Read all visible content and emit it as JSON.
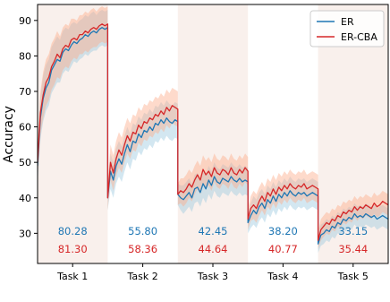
{
  "chart_data": {
    "type": "line",
    "title": "",
    "xlabel": "",
    "ylabel": "Accuracy",
    "ylim": [
      21.5,
      94.5
    ],
    "yticks": [
      30,
      40,
      50,
      60,
      70,
      80,
      90
    ],
    "grid": false,
    "legend_position": "top-right",
    "tasks": [
      {
        "label": "Task 1",
        "shaded": true
      },
      {
        "label": "Task 2",
        "shaded": false
      },
      {
        "label": "Task 3",
        "shaded": true
      },
      {
        "label": "Task 4",
        "shaded": false
      },
      {
        "label": "Task 5",
        "shaded": true
      }
    ],
    "annotations": {
      "ER": [
        "80.28",
        "55.80",
        "42.45",
        "38.20",
        "33.15"
      ],
      "ER-CBA": [
        "81.30",
        "58.36",
        "44.64",
        "40.77",
        "35.44"
      ]
    },
    "series": [
      {
        "name": "ER",
        "color": "#1f77b4",
        "band_color": "#9ecae1",
        "x": [
          0.0,
          0.04,
          0.08,
          0.12,
          0.16,
          0.2,
          0.24,
          0.28,
          0.32,
          0.36,
          0.4,
          0.44,
          0.48,
          0.52,
          0.56,
          0.6,
          0.64,
          0.68,
          0.72,
          0.76,
          0.8,
          0.84,
          0.88,
          0.92,
          0.96,
          1.0,
          1.0,
          1.04,
          1.08,
          1.12,
          1.16,
          1.2,
          1.24,
          1.28,
          1.32,
          1.36,
          1.4,
          1.44,
          1.48,
          1.52,
          1.56,
          1.6,
          1.64,
          1.68,
          1.72,
          1.76,
          1.8,
          1.84,
          1.88,
          1.92,
          1.96,
          2.0,
          2.0,
          2.04,
          2.08,
          2.12,
          2.16,
          2.2,
          2.24,
          2.28,
          2.32,
          2.36,
          2.4,
          2.44,
          2.48,
          2.52,
          2.56,
          2.6,
          2.64,
          2.68,
          2.72,
          2.76,
          2.8,
          2.84,
          2.88,
          2.92,
          2.96,
          3.0,
          3.0,
          3.04,
          3.08,
          3.12,
          3.16,
          3.2,
          3.24,
          3.28,
          3.32,
          3.36,
          3.4,
          3.44,
          3.48,
          3.52,
          3.56,
          3.6,
          3.64,
          3.68,
          3.72,
          3.76,
          3.8,
          3.84,
          3.88,
          3.92,
          3.96,
          4.0,
          4.0,
          4.04,
          4.08,
          4.12,
          4.16,
          4.2,
          4.24,
          4.28,
          4.32,
          4.36,
          4.4,
          4.44,
          4.48,
          4.52,
          4.56,
          4.6,
          4.64,
          4.68,
          4.72,
          4.76,
          4.8,
          4.84,
          4.88,
          4.92,
          4.96,
          5.0
        ],
        "values": [
          49.0,
          62.5,
          68.0,
          71.0,
          72.5,
          76.0,
          77.5,
          79.0,
          78.5,
          81.0,
          82.0,
          81.5,
          83.0,
          84.0,
          83.5,
          84.5,
          85.0,
          86.0,
          85.5,
          86.5,
          87.0,
          86.5,
          87.5,
          88.0,
          87.5,
          88.0,
          40.0,
          47.5,
          45.0,
          49.0,
          51.0,
          49.5,
          52.5,
          55.0,
          53.0,
          56.0,
          55.5,
          58.0,
          57.0,
          59.0,
          58.5,
          60.0,
          59.0,
          61.0,
          60.5,
          62.0,
          61.0,
          62.5,
          61.5,
          61.0,
          62.0,
          61.5,
          41.0,
          40.0,
          39.5,
          40.5,
          41.5,
          40.0,
          42.5,
          43.0,
          41.5,
          44.0,
          42.5,
          45.0,
          43.5,
          46.0,
          44.5,
          44.0,
          45.5,
          45.0,
          44.5,
          46.0,
          45.0,
          44.5,
          45.5,
          44.5,
          45.0,
          44.5,
          33.0,
          35.0,
          36.5,
          35.5,
          37.5,
          38.5,
          37.0,
          39.5,
          38.5,
          40.5,
          39.0,
          41.0,
          40.0,
          41.5,
          40.5,
          42.0,
          41.0,
          40.5,
          41.5,
          41.0,
          41.5,
          40.5,
          41.0,
          41.5,
          41.0,
          40.5,
          27.0,
          29.5,
          30.0,
          31.0,
          30.5,
          32.0,
          31.5,
          33.0,
          32.5,
          34.0,
          33.5,
          34.5,
          34.0,
          35.5,
          34.5,
          35.0,
          34.5,
          35.5,
          35.0,
          34.5,
          35.0,
          34.0,
          34.5,
          35.0,
          34.5,
          34.0
        ],
        "lower": [
          44.0,
          56.5,
          61.5,
          64.5,
          66.0,
          69.5,
          71.0,
          72.5,
          72.5,
          75.0,
          76.0,
          75.5,
          77.0,
          78.5,
          78.0,
          79.0,
          79.5,
          80.5,
          80.0,
          81.0,
          81.5,
          81.5,
          82.5,
          83.0,
          82.5,
          83.0,
          36.5,
          42.5,
          40.0,
          44.0,
          46.0,
          44.5,
          47.5,
          50.0,
          48.0,
          51.0,
          50.5,
          53.0,
          52.0,
          54.0,
          53.5,
          55.0,
          54.0,
          56.0,
          55.5,
          57.0,
          56.0,
          57.5,
          56.5,
          56.0,
          57.0,
          56.5,
          38.0,
          36.5,
          35.5,
          36.5,
          37.5,
          36.0,
          38.5,
          39.0,
          37.5,
          40.0,
          38.5,
          41.0,
          39.5,
          42.0,
          40.5,
          40.0,
          41.5,
          41.0,
          40.5,
          42.0,
          41.0,
          40.5,
          41.5,
          40.5,
          41.0,
          40.5,
          30.0,
          31.5,
          32.5,
          31.5,
          33.5,
          34.5,
          33.0,
          35.5,
          34.5,
          36.5,
          35.0,
          37.0,
          36.0,
          37.5,
          36.5,
          38.0,
          37.0,
          36.5,
          37.5,
          37.0,
          37.5,
          36.5,
          37.0,
          37.5,
          37.0,
          36.5,
          24.5,
          26.5,
          27.0,
          28.0,
          27.5,
          29.0,
          28.5,
          30.0,
          29.5,
          31.0,
          30.5,
          31.5,
          31.0,
          32.5,
          31.5,
          32.0,
          31.5,
          32.5,
          32.0,
          31.5,
          32.0,
          31.0,
          31.5,
          32.0,
          31.5,
          31.0
        ],
        "upper": [
          54.0,
          68.5,
          74.5,
          77.5,
          79.0,
          82.5,
          84.0,
          85.5,
          84.5,
          87.0,
          88.0,
          87.5,
          89.0,
          89.5,
          89.0,
          90.0,
          90.5,
          91.5,
          91.0,
          92.0,
          92.5,
          91.5,
          92.5,
          93.0,
          92.5,
          93.0,
          43.5,
          52.5,
          50.0,
          54.0,
          56.0,
          54.5,
          57.5,
          60.0,
          58.0,
          61.0,
          60.5,
          63.0,
          62.0,
          64.0,
          63.5,
          65.0,
          64.0,
          66.0,
          65.5,
          67.0,
          66.0,
          67.5,
          66.5,
          66.0,
          67.0,
          66.5,
          44.0,
          43.5,
          43.5,
          44.5,
          45.5,
          44.0,
          46.5,
          47.0,
          45.5,
          48.0,
          46.5,
          49.0,
          47.5,
          50.0,
          48.5,
          48.0,
          49.5,
          49.0,
          48.5,
          50.0,
          49.0,
          48.5,
          49.5,
          48.5,
          49.0,
          48.5,
          36.0,
          38.5,
          40.5,
          39.5,
          41.5,
          42.5,
          41.0,
          43.5,
          42.5,
          44.5,
          43.0,
          45.0,
          44.0,
          45.5,
          44.5,
          46.0,
          45.0,
          44.5,
          45.5,
          45.0,
          45.5,
          44.5,
          45.0,
          45.5,
          45.0,
          44.5,
          29.5,
          32.5,
          33.0,
          34.0,
          33.5,
          35.0,
          34.5,
          36.0,
          35.5,
          37.0,
          36.5,
          37.5,
          37.0,
          38.5,
          37.5,
          38.0,
          37.5,
          38.5,
          38.0,
          37.5,
          38.0,
          37.0,
          37.5,
          38.0,
          37.5,
          37.0
        ]
      },
      {
        "name": "ER-CBA",
        "color": "#d62728",
        "band_color": "#fdae8b",
        "x": [
          0.0,
          0.04,
          0.08,
          0.12,
          0.16,
          0.2,
          0.24,
          0.28,
          0.32,
          0.36,
          0.4,
          0.44,
          0.48,
          0.52,
          0.56,
          0.6,
          0.64,
          0.68,
          0.72,
          0.76,
          0.8,
          0.84,
          0.88,
          0.92,
          0.96,
          1.0,
          1.0,
          1.04,
          1.08,
          1.12,
          1.16,
          1.2,
          1.24,
          1.28,
          1.32,
          1.36,
          1.4,
          1.44,
          1.48,
          1.52,
          1.56,
          1.6,
          1.64,
          1.68,
          1.72,
          1.76,
          1.8,
          1.84,
          1.88,
          1.92,
          1.96,
          2.0,
          2.0,
          2.04,
          2.08,
          2.12,
          2.16,
          2.2,
          2.24,
          2.28,
          2.32,
          2.36,
          2.4,
          2.44,
          2.48,
          2.52,
          2.56,
          2.6,
          2.64,
          2.68,
          2.72,
          2.76,
          2.8,
          2.84,
          2.88,
          2.92,
          2.96,
          3.0,
          3.0,
          3.04,
          3.08,
          3.12,
          3.16,
          3.2,
          3.24,
          3.28,
          3.32,
          3.36,
          3.4,
          3.44,
          3.48,
          3.52,
          3.56,
          3.6,
          3.64,
          3.68,
          3.72,
          3.76,
          3.8,
          3.84,
          3.88,
          3.92,
          3.96,
          4.0,
          4.0,
          4.04,
          4.08,
          4.12,
          4.16,
          4.2,
          4.24,
          4.28,
          4.32,
          4.36,
          4.4,
          4.44,
          4.48,
          4.52,
          4.56,
          4.6,
          4.64,
          4.68,
          4.72,
          4.76,
          4.8,
          4.84,
          4.88,
          4.92,
          4.96,
          5.0
        ],
        "values": [
          50.0,
          64.0,
          69.0,
          72.5,
          74.0,
          77.0,
          78.5,
          80.5,
          79.5,
          82.0,
          83.0,
          82.5,
          84.5,
          85.0,
          84.5,
          86.0,
          86.0,
          87.0,
          86.5,
          87.5,
          88.0,
          87.5,
          88.5,
          89.0,
          88.5,
          89.0,
          40.0,
          50.0,
          47.0,
          51.0,
          53.5,
          52.0,
          55.0,
          57.5,
          56.0,
          58.5,
          58.0,
          60.5,
          59.5,
          61.5,
          61.0,
          62.5,
          62.0,
          63.5,
          63.0,
          64.5,
          63.5,
          65.5,
          64.5,
          66.0,
          65.5,
          65.0,
          41.0,
          42.0,
          41.5,
          42.5,
          44.0,
          43.0,
          45.0,
          46.5,
          45.0,
          48.0,
          46.5,
          47.5,
          46.0,
          48.5,
          47.0,
          46.5,
          48.0,
          47.5,
          46.5,
          48.5,
          47.0,
          46.5,
          48.0,
          47.0,
          48.5,
          47.5,
          34.0,
          37.0,
          38.0,
          37.0,
          39.0,
          40.5,
          39.0,
          41.5,
          40.5,
          42.5,
          41.0,
          43.0,
          42.0,
          43.5,
          42.5,
          44.0,
          43.0,
          42.5,
          43.5,
          43.0,
          44.0,
          42.5,
          43.0,
          43.5,
          43.0,
          42.5,
          28.0,
          31.0,
          32.0,
          33.0,
          32.5,
          34.0,
          33.5,
          35.0,
          34.5,
          36.0,
          35.5,
          36.5,
          36.0,
          37.5,
          36.5,
          37.5,
          37.0,
          38.0,
          37.5,
          37.0,
          38.5,
          37.5,
          38.0,
          39.0,
          38.5,
          38.0
        ],
        "lower": [
          45.0,
          58.0,
          62.5,
          66.0,
          67.5,
          70.5,
          72.0,
          74.0,
          73.5,
          76.0,
          77.0,
          76.5,
          78.5,
          79.5,
          79.0,
          80.5,
          80.5,
          81.5,
          81.0,
          82.0,
          82.5,
          82.5,
          83.5,
          84.0,
          83.5,
          84.0,
          36.5,
          45.0,
          42.0,
          46.0,
          48.5,
          47.0,
          50.0,
          52.5,
          51.0,
          53.5,
          53.0,
          55.5,
          54.5,
          56.5,
          56.0,
          57.5,
          57.0,
          58.5,
          58.0,
          59.5,
          58.5,
          60.5,
          59.5,
          61.0,
          60.5,
          60.0,
          38.0,
          38.5,
          37.5,
          38.5,
          40.0,
          39.0,
          41.0,
          42.5,
          41.0,
          44.0,
          42.5,
          43.5,
          42.0,
          44.5,
          43.0,
          42.5,
          44.0,
          43.5,
          42.5,
          44.5,
          43.0,
          42.5,
          44.0,
          43.0,
          44.5,
          43.5,
          31.0,
          33.5,
          34.0,
          33.0,
          35.0,
          36.5,
          35.0,
          37.5,
          36.5,
          38.5,
          37.0,
          39.0,
          38.0,
          39.5,
          38.5,
          40.0,
          39.0,
          38.5,
          39.5,
          39.0,
          40.0,
          38.5,
          39.0,
          39.5,
          39.0,
          38.5,
          25.5,
          28.0,
          29.0,
          30.0,
          29.5,
          31.0,
          30.5,
          32.0,
          31.5,
          33.0,
          32.5,
          33.5,
          33.0,
          34.5,
          33.5,
          34.5,
          34.0,
          35.0,
          34.5,
          34.0,
          35.5,
          34.5,
          35.0,
          36.0,
          35.5,
          35.0
        ],
        "upper": [
          55.0,
          70.0,
          75.5,
          79.0,
          80.5,
          83.5,
          85.0,
          87.0,
          85.5,
          88.0,
          89.0,
          88.5,
          90.5,
          90.5,
          90.0,
          91.5,
          91.5,
          92.5,
          92.0,
          93.0,
          93.5,
          92.5,
          93.5,
          94.0,
          93.5,
          94.0,
          43.5,
          55.0,
          52.0,
          56.0,
          58.5,
          57.0,
          60.0,
          62.5,
          61.0,
          63.5,
          63.0,
          65.5,
          64.5,
          66.5,
          66.0,
          67.5,
          67.0,
          68.5,
          68.0,
          69.5,
          68.5,
          70.5,
          69.5,
          71.0,
          70.5,
          70.0,
          44.0,
          45.5,
          45.5,
          46.5,
          48.0,
          47.0,
          49.0,
          50.5,
          49.0,
          52.0,
          50.5,
          51.5,
          50.0,
          52.5,
          51.0,
          50.5,
          52.0,
          51.5,
          50.5,
          52.5,
          51.0,
          50.5,
          52.0,
          51.0,
          52.5,
          51.5,
          37.0,
          40.5,
          42.0,
          41.0,
          43.0,
          44.5,
          43.0,
          45.5,
          44.5,
          46.5,
          45.0,
          47.0,
          46.0,
          47.5,
          46.5,
          48.0,
          47.0,
          46.5,
          47.5,
          47.0,
          48.0,
          46.5,
          47.0,
          47.5,
          47.0,
          46.5,
          30.5,
          34.0,
          35.0,
          36.0,
          35.5,
          37.0,
          36.5,
          38.0,
          37.5,
          39.0,
          38.5,
          39.5,
          39.0,
          40.5,
          39.5,
          40.5,
          40.0,
          41.0,
          40.5,
          40.0,
          41.5,
          40.5,
          41.0,
          42.0,
          41.5,
          41.0
        ]
      }
    ]
  }
}
